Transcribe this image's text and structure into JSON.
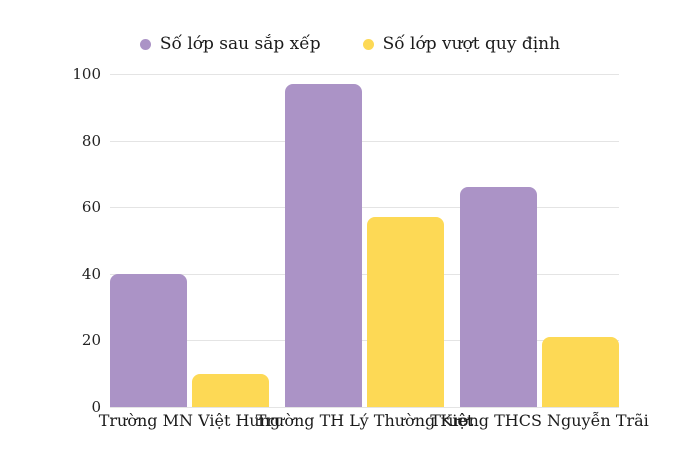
{
  "chart_data": {
    "type": "bar",
    "title": "",
    "xlabel": "",
    "ylabel": "",
    "categories": [
      "Trường MN Việt Hưng",
      "Trường TH Lý Thường Kiệt",
      "Trường THCS Nguyễn Trãi"
    ],
    "series": [
      {
        "name": "Số lớp sau sắp xếp",
        "color": "#ab93c6",
        "values": [
          40,
          97,
          66
        ]
      },
      {
        "name": "Số lớp vượt quy định",
        "color": "#fdd955",
        "values": [
          10,
          57,
          21
        ]
      }
    ],
    "ylim": [
      0,
      100
    ],
    "yticks": [
      0,
      20,
      40,
      60,
      80,
      100
    ],
    "grid": true,
    "legend_position": "top-center"
  },
  "colors": {
    "background": "#ffffff",
    "gridline": "#e4e4e4",
    "text": "#1b1b1b",
    "series_purple": "#ab93c6",
    "series_yellow": "#fdd955"
  }
}
